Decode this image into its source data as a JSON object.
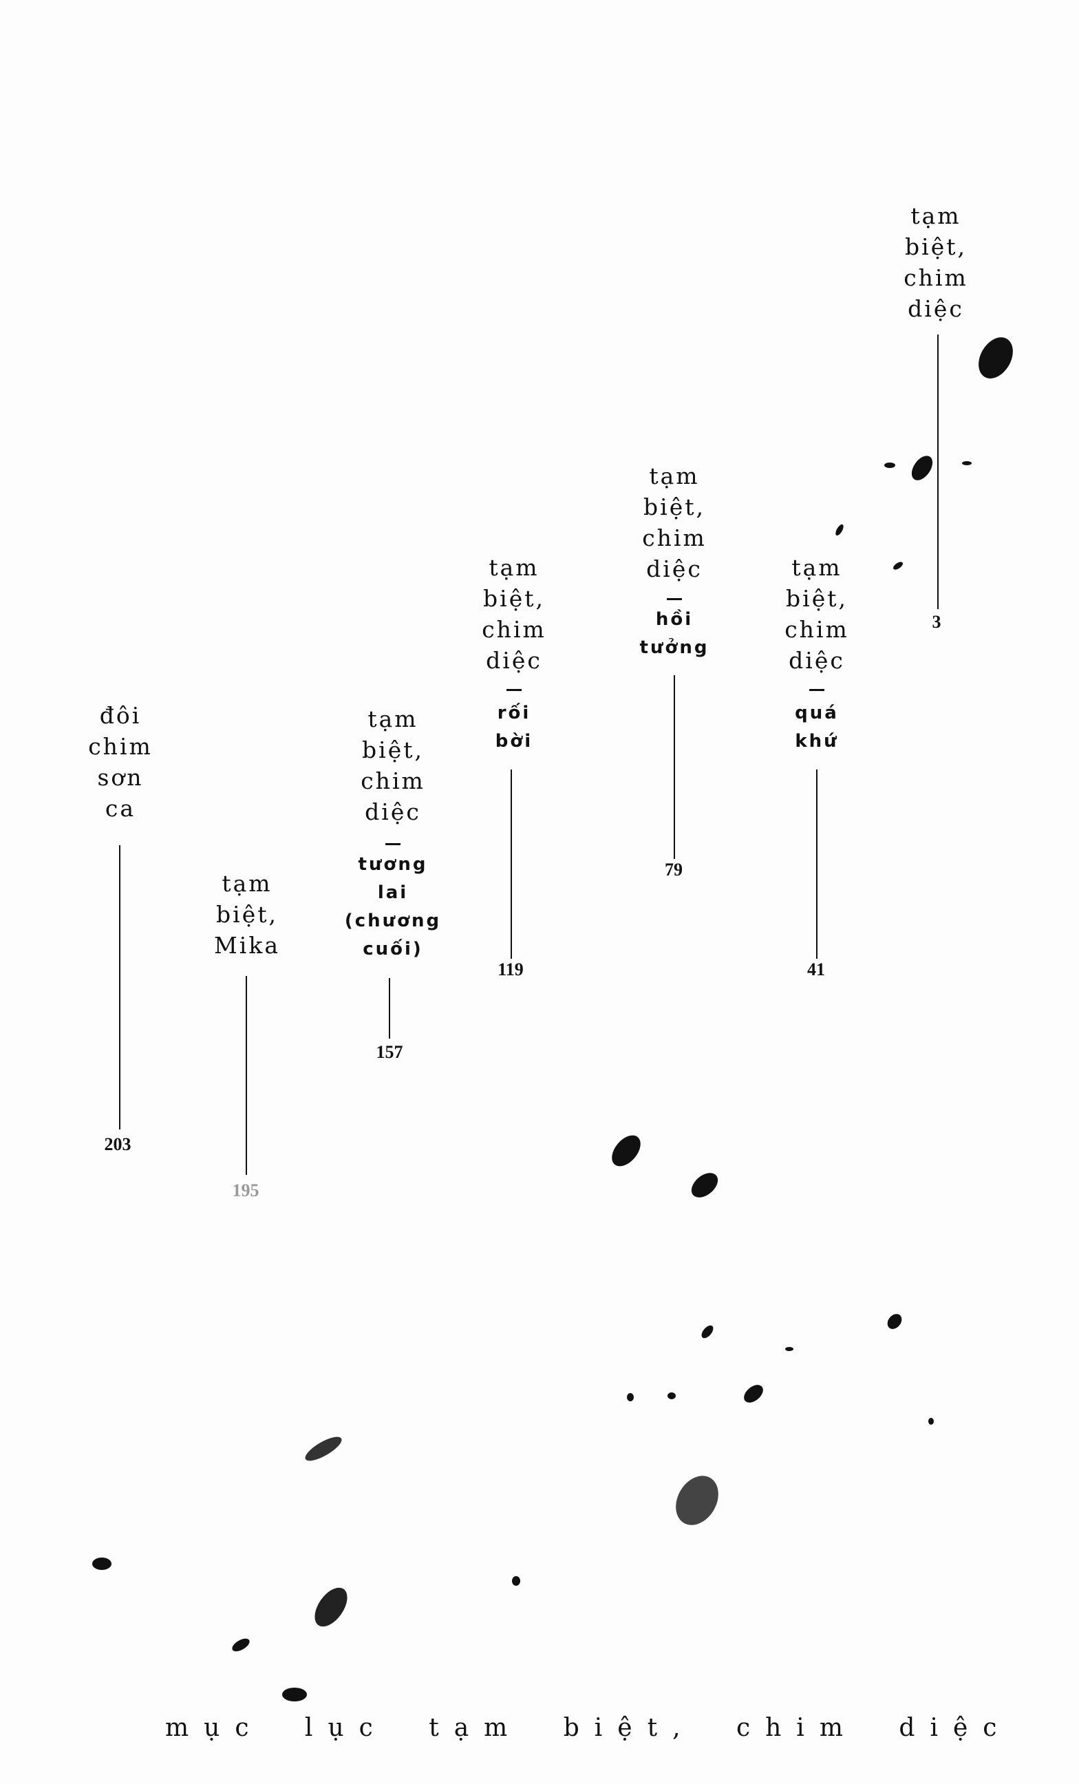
{
  "toc": {
    "heading": "mục lục tạm biệt, chim diệc",
    "entries": [
      {
        "title_lines": [
          "đôi",
          "chim",
          "sơn",
          "ca"
        ],
        "subtitle_lines": [],
        "page": "203"
      },
      {
        "title_lines": [
          "tạm",
          "biệt,",
          "Mika"
        ],
        "subtitle_lines": [],
        "page": "195"
      },
      {
        "title_lines": [
          "tạm",
          "biệt,",
          "chim",
          "diệc"
        ],
        "subtitle_lines": [
          "tương",
          "lai",
          "(chương",
          "cuối)"
        ],
        "page": "157"
      },
      {
        "title_lines": [
          "tạm",
          "biệt,",
          "chim",
          "diệc"
        ],
        "subtitle_lines": [
          "rối",
          "bời"
        ],
        "page": "119"
      },
      {
        "title_lines": [
          "tạm",
          "biệt,",
          "chim",
          "diệc"
        ],
        "subtitle_lines": [
          "hồi",
          "tưởng"
        ],
        "page": "79"
      },
      {
        "title_lines": [
          "tạm",
          "biệt,",
          "chim",
          "diệc"
        ],
        "subtitle_lines": [
          "quá",
          "khứ"
        ],
        "page": "41"
      },
      {
        "title_lines": [
          "tạm",
          "biệt,",
          "chim",
          "diệc"
        ],
        "subtitle_lines": [],
        "page": "3"
      }
    ]
  },
  "colors": {
    "ink": "#111111",
    "paper": "#fdfdfd"
  }
}
